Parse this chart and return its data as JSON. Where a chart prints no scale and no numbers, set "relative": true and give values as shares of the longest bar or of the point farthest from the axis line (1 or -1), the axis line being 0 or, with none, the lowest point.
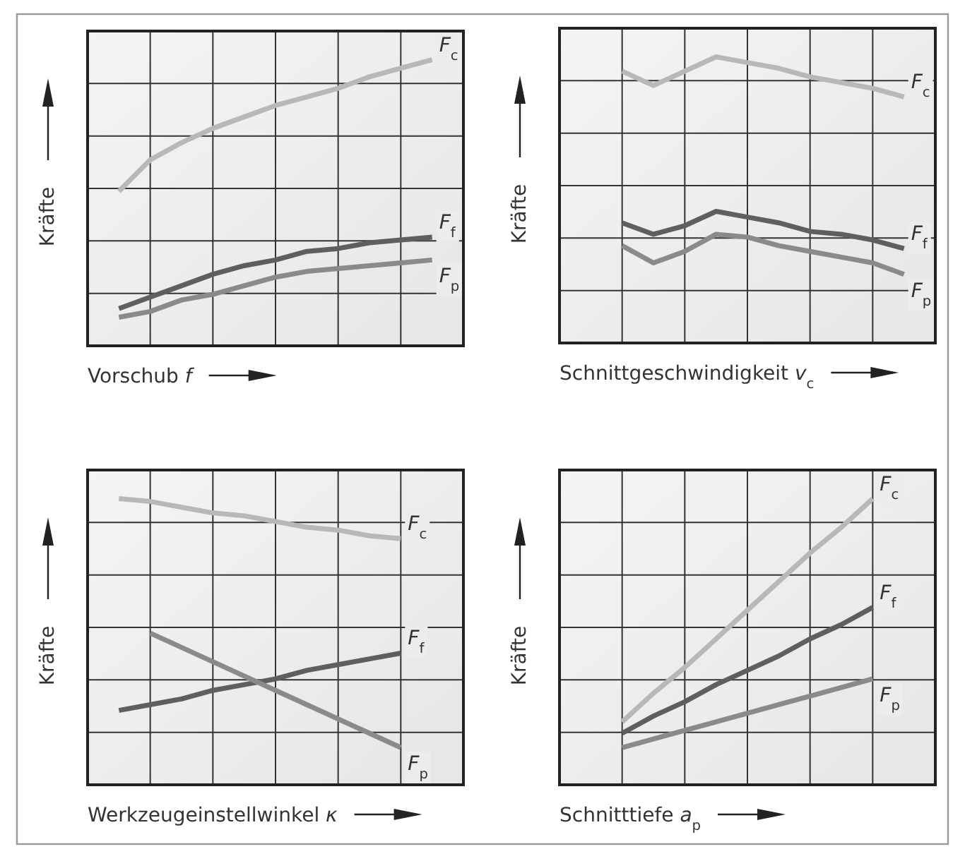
{
  "chart_data": [
    {
      "type": "line",
      "relative": true,
      "grid": true,
      "xlabel": "Vorschub f",
      "ylabel": "Kräfte",
      "categories": [
        null,
        null,
        null,
        null,
        null,
        null,
        null,
        null,
        null,
        null,
        null,
        null,
        null
      ],
      "series": [
        {
          "name": "F$_{c}$",
          "color": "#b8b8b8",
          "values": [
            null,
            0.54,
            0.65,
            0.71,
            0.76,
            0.8,
            0.84,
            0.87,
            0.9,
            0.94,
            0.97,
            1,
            null
          ]
        },
        {
          "name": "F$_{f}$",
          "color": "#5f5f5f",
          "values": [
            null,
            0.13,
            0.17,
            0.21,
            0.25,
            0.28,
            0.3,
            0.33,
            0.34,
            0.36,
            0.37,
            0.38,
            null
          ]
        },
        {
          "name": "F$_{p}$",
          "color": "#8a8a8a",
          "values": [
            null,
            0.1,
            0.12,
            0.16,
            0.18,
            0.21,
            0.24,
            0.26,
            0.27,
            0.28,
            0.29,
            0.3,
            null
          ]
        }
      ]
    },
    {
      "type": "line",
      "relative": true,
      "grid": true,
      "xlabel": "Schnittgeschwindigkeit v$_{c}$",
      "ylabel": "Kräfte",
      "categories": [
        null,
        null,
        null,
        null,
        null,
        null,
        null,
        null,
        null,
        null,
        null,
        null,
        null
      ],
      "series": [
        {
          "name": "F$_{c}$",
          "color": "#b8b8b8",
          "values": [
            null,
            null,
            0.95,
            0.9,
            0.95,
            1,
            0.98,
            0.96,
            0.93,
            0.91,
            0.89,
            0.86,
            null
          ]
        },
        {
          "name": "F$_{f}$",
          "color": "#5f5f5f",
          "values": [
            null,
            null,
            0.42,
            0.38,
            0.41,
            0.46,
            0.44,
            0.42,
            0.39,
            0.38,
            0.36,
            0.33,
            null
          ]
        },
        {
          "name": "F$_{p}$",
          "color": "#8a8a8a",
          "values": [
            null,
            null,
            0.34,
            0.28,
            0.32,
            0.38,
            0.37,
            0.34,
            0.32,
            0.3,
            0.28,
            0.24,
            null
          ]
        }
      ]
    },
    {
      "type": "line",
      "relative": true,
      "grid": true,
      "xlabel": "Werkzeugeinstellwinkel κ",
      "ylabel": "Kräfte",
      "categories": [
        null,
        null,
        null,
        null,
        null,
        null,
        null,
        null,
        null,
        null,
        null,
        null,
        null
      ],
      "series": [
        {
          "name": "F$_{c}$",
          "color": "#b8b8b8",
          "values": [
            null,
            1,
            0.99,
            0.97,
            0.95,
            0.94,
            0.92,
            0.9,
            0.89,
            0.87,
            0.86,
            null,
            null
          ]
        },
        {
          "name": "F$_{f}$",
          "color": "#5f5f5f",
          "values": [
            null,
            0.26,
            0.28,
            0.3,
            0.33,
            0.35,
            0.37,
            0.4,
            0.42,
            0.44,
            0.46,
            null,
            null
          ]
        },
        {
          "name": "F$_{p}$",
          "color": "#8a8a8a",
          "values": [
            null,
            null,
            0.53,
            0.48,
            0.43,
            0.38,
            0.33,
            0.28,
            0.23,
            0.18,
            0.13,
            null,
            null
          ]
        }
      ]
    },
    {
      "type": "line",
      "relative": true,
      "grid": true,
      "xlabel": "Schnitttiefe a$_{p}$",
      "ylabel": "Kräfte",
      "categories": [
        null,
        null,
        null,
        null,
        null,
        null,
        null,
        null,
        null,
        null,
        null,
        null,
        null
      ],
      "series": [
        {
          "name": "F$_{c}$",
          "color": "#b8b8b8",
          "values": [
            null,
            null,
            0.22,
            0.32,
            0.41,
            0.51,
            0.61,
            0.71,
            0.81,
            0.9,
            1,
            null,
            null
          ]
        },
        {
          "name": "F$_{f}$",
          "color": "#5f5f5f",
          "values": [
            null,
            null,
            0.18,
            0.24,
            0.29,
            0.35,
            0.4,
            0.45,
            0.51,
            0.56,
            0.62,
            null,
            null
          ]
        },
        {
          "name": "F$_{p}$",
          "color": "#8a8a8a",
          "values": [
            null,
            null,
            0.13,
            0.16,
            0.19,
            0.22,
            0.25,
            0.28,
            0.31,
            0.34,
            0.37,
            null,
            null
          ]
        }
      ]
    }
  ]
}
